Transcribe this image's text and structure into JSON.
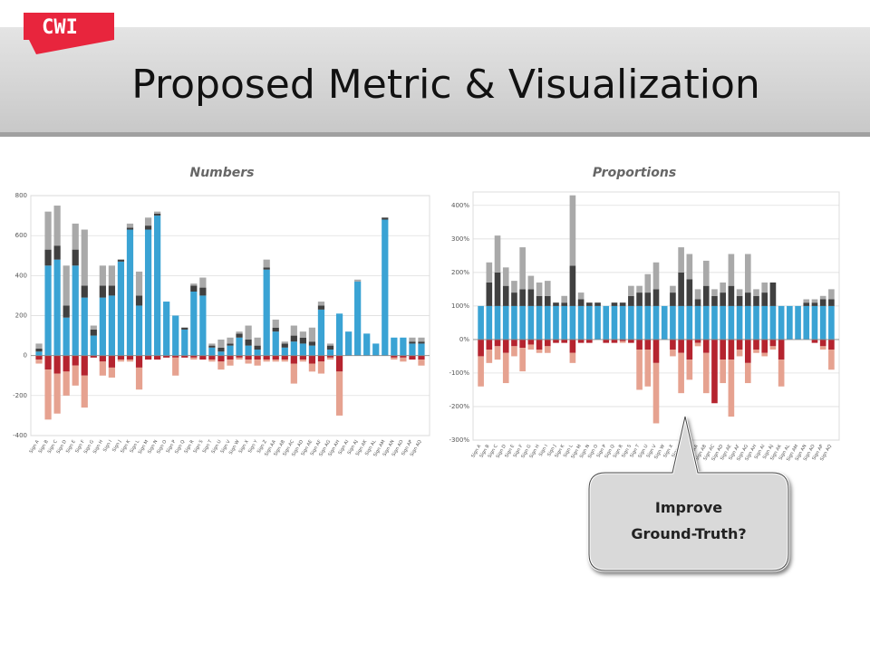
{
  "slide": {
    "logo": "CWI",
    "title": "Proposed Metric & Visualization",
    "callout": [
      "Improve",
      "Ground-Truth?"
    ]
  },
  "chart_data": [
    {
      "type": "bar",
      "title": "Numbers",
      "stacked": true,
      "grid": true,
      "categories": [
        "Sign A",
        "Sign B",
        "Sign C",
        "Sign D",
        "Sign E",
        "Sign F",
        "Sign G",
        "Sign H",
        "Sign I",
        "Sign J",
        "Sign K",
        "Sign L",
        "Sign M",
        "Sign N",
        "Sign O",
        "Sign P",
        "Sign Q",
        "Sign R",
        "Sign S",
        "Sign T",
        "Sign U",
        "Sign V",
        "Sign W",
        "Sign X",
        "Sign Y",
        "Sign Z",
        "Sign AA",
        "Sign AB",
        "Sign AC",
        "Sign AD",
        "Sign AE",
        "Sign AF",
        "Sign AG",
        "Sign AH",
        "Sign AI",
        "Sign AJ",
        "Sign AK",
        "Sign AL",
        "Sign AM",
        "Sign AN",
        "Sign AO",
        "Sign AP",
        "Sign AQ"
      ],
      "ylim": [
        -400,
        800
      ],
      "yticks": [
        -400,
        -200,
        0,
        200,
        400,
        600,
        800
      ],
      "series": [
        {
          "color": "#3aa3d4",
          "values": [
            20,
            450,
            480,
            190,
            450,
            290,
            100,
            290,
            300,
            470,
            630,
            250,
            630,
            700,
            270,
            200,
            130,
            320,
            300,
            40,
            20,
            50,
            90,
            50,
            30,
            430,
            120,
            40,
            70,
            60,
            50,
            230,
            30,
            210,
            120,
            370,
            110,
            60,
            680,
            90,
            90,
            60,
            60
          ]
        },
        {
          "color": "#404040",
          "values": [
            15,
            80,
            70,
            60,
            80,
            60,
            30,
            60,
            50,
            10,
            10,
            50,
            20,
            10,
            0,
            0,
            10,
            30,
            40,
            10,
            20,
            10,
            20,
            30,
            20,
            10,
            20,
            20,
            30,
            30,
            20,
            20,
            20,
            0,
            0,
            0,
            0,
            0,
            10,
            0,
            0,
            10,
            10
          ]
        },
        {
          "color": "#a9a9a9",
          "values": [
            25,
            190,
            200,
            200,
            130,
            280,
            20,
            100,
            100,
            0,
            20,
            120,
            40,
            10,
            0,
            0,
            0,
            10,
            50,
            10,
            40,
            30,
            10,
            70,
            40,
            40,
            40,
            10,
            50,
            30,
            70,
            20,
            10,
            0,
            0,
            10,
            0,
            0,
            0,
            0,
            0,
            20,
            20
          ]
        },
        {
          "color": "#b5242f",
          "values": [
            -20,
            -70,
            -90,
            -80,
            -50,
            -100,
            -10,
            -30,
            -60,
            -20,
            -20,
            -60,
            -20,
            -20,
            -10,
            -10,
            -10,
            -10,
            -20,
            -20,
            -30,
            -20,
            -10,
            -20,
            -20,
            -20,
            -20,
            -20,
            -40,
            -20,
            -40,
            -30,
            -10,
            -80,
            0,
            0,
            0,
            0,
            0,
            -10,
            -10,
            -20,
            -20
          ]
        },
        {
          "color": "#e6a290",
          "values": [
            -20,
            -250,
            -200,
            -120,
            -100,
            -160,
            0,
            -70,
            -50,
            -10,
            -10,
            -110,
            0,
            0,
            0,
            -90,
            0,
            -10,
            0,
            -10,
            -40,
            -30,
            -10,
            -20,
            -30,
            -10,
            -10,
            -10,
            -100,
            -10,
            -40,
            -60,
            -10,
            -220,
            0,
            0,
            0,
            0,
            0,
            -10,
            -20,
            0,
            -30
          ]
        }
      ]
    },
    {
      "type": "bar",
      "title": "Proportions",
      "stacked": true,
      "grid": true,
      "categories": [
        "Sign A",
        "Sign B",
        "Sign C",
        "Sign D",
        "Sign E",
        "Sign F",
        "Sign G",
        "Sign H",
        "Sign I",
        "Sign J",
        "Sign K",
        "Sign L",
        "Sign M",
        "Sign N",
        "Sign O",
        "Sign P",
        "Sign Q",
        "Sign R",
        "Sign S",
        "Sign T",
        "Sign U",
        "Sign V",
        "Sign W",
        "Sign X",
        "Sign Y",
        "Sign Z",
        "Sign AA",
        "Sign AB",
        "Sign AC",
        "Sign AD",
        "Sign AE",
        "Sign AF",
        "Sign AG",
        "Sign AH",
        "Sign AI",
        "Sign AJ",
        "Sign AK",
        "Sign AL",
        "Sign AM",
        "Sign AN",
        "Sign AO",
        "Sign AP",
        "Sign AQ"
      ],
      "ylim": [
        -300,
        440
      ],
      "yticks": [
        {
          "value": -300,
          "label": "-300%"
        },
        {
          "value": -200,
          "label": "-200%"
        },
        {
          "value": -100,
          "label": "-100%"
        },
        {
          "value": 0,
          "label": "0%"
        },
        {
          "value": 100,
          "label": "100%"
        },
        {
          "value": 200,
          "label": "200%"
        },
        {
          "value": 300,
          "label": "300%"
        },
        {
          "value": 400,
          "label": "400%"
        }
      ],
      "series": [
        {
          "color": "#3aa3d4",
          "values": [
            100,
            100,
            100,
            100,
            100,
            100,
            100,
            100,
            100,
            100,
            100,
            100,
            100,
            100,
            100,
            100,
            100,
            100,
            100,
            100,
            100,
            100,
            100,
            100,
            100,
            100,
            100,
            100,
            100,
            100,
            100,
            100,
            100,
            100,
            100,
            100,
            100,
            100,
            100,
            100,
            100,
            100,
            100
          ]
        },
        {
          "color": "#404040",
          "values": [
            0,
            70,
            100,
            60,
            40,
            50,
            50,
            30,
            30,
            10,
            10,
            120,
            20,
            10,
            10,
            0,
            10,
            10,
            30,
            40,
            40,
            50,
            0,
            40,
            100,
            80,
            20,
            60,
            30,
            40,
            60,
            30,
            40,
            30,
            40,
            70,
            0,
            0,
            0,
            10,
            10,
            20,
            20
          ]
        },
        {
          "color": "#a9a9a9",
          "values": [
            0,
            60,
            110,
            55,
            35,
            125,
            40,
            40,
            45,
            0,
            20,
            210,
            20,
            0,
            0,
            0,
            0,
            0,
            30,
            20,
            55,
            80,
            0,
            20,
            75,
            75,
            30,
            75,
            20,
            30,
            95,
            20,
            115,
            20,
            30,
            0,
            0,
            0,
            0,
            10,
            10,
            10,
            30
          ]
        },
        {
          "color": "#b5242f",
          "values": [
            -50,
            -30,
            -20,
            -40,
            -20,
            -25,
            -15,
            -30,
            -20,
            -10,
            -10,
            -40,
            -10,
            -10,
            0,
            -10,
            -10,
            -5,
            -10,
            -30,
            -30,
            -70,
            0,
            -30,
            -40,
            -60,
            -10,
            -40,
            -190,
            -60,
            -60,
            -30,
            -70,
            -30,
            -40,
            -20,
            -60,
            0,
            0,
            0,
            -10,
            -20,
            -30
          ]
        },
        {
          "color": "#e6a290",
          "values": [
            -90,
            -40,
            -40,
            -90,
            -30,
            -70,
            -15,
            -10,
            -20,
            0,
            0,
            -30,
            0,
            0,
            0,
            0,
            0,
            -5,
            0,
            -120,
            -110,
            -180,
            0,
            -20,
            -120,
            -60,
            -10,
            -120,
            0,
            -70,
            -170,
            -20,
            -60,
            -10,
            -10,
            -10,
            -80,
            0,
            0,
            0,
            0,
            -10,
            -60
          ]
        }
      ]
    }
  ]
}
